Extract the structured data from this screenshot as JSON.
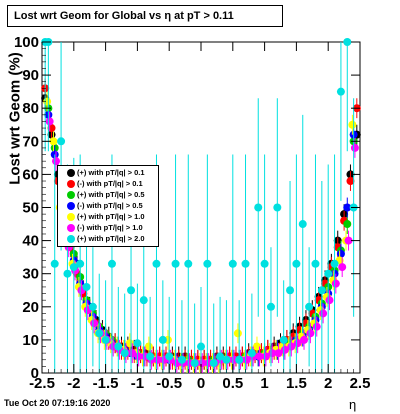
{
  "stamp": "Tue Oct 20 07:19:16 2020",
  "chart_data": {
    "type": "scatter",
    "title": "Lost wrt Geom for Global vs   η at pT > 0.11",
    "xlabel": "η",
    "ylabel": "Lost wrt Geom (%)",
    "xlim": [
      -2.5,
      2.5
    ],
    "ylim": [
      0,
      100
    ],
    "xticks": [
      "-2.5",
      "-2",
      "-1.5",
      "-1",
      "-0.5",
      "0",
      "0.5",
      "1",
      "1.5",
      "2",
      "2.5"
    ],
    "yticks": [
      "0",
      "10",
      "20",
      "30",
      "40",
      "50",
      "60",
      "70",
      "80",
      "90",
      "100"
    ],
    "legend_position": "left-middle",
    "series": [
      {
        "name": "(+) with pT/|q| > 0.1",
        "color": "#000000",
        "x": [
          -2.45,
          -2.35,
          -2.25,
          -2.15,
          -2.05,
          -1.95,
          -1.85,
          -1.75,
          -1.65,
          -1.55,
          -1.45,
          -1.35,
          -1.25,
          -1.15,
          -1.05,
          -0.95,
          -0.85,
          -0.75,
          -0.65,
          -0.55,
          -0.45,
          -0.35,
          -0.25,
          -0.15,
          -0.05,
          0.05,
          0.15,
          0.25,
          0.35,
          0.45,
          0.55,
          0.65,
          0.75,
          0.85,
          0.95,
          1.05,
          1.15,
          1.25,
          1.35,
          1.45,
          1.55,
          1.65,
          1.75,
          1.85,
          1.95,
          2.05,
          2.15,
          2.25,
          2.35,
          2.45
        ],
        "y": [
          83,
          72,
          60,
          48,
          40,
          33,
          25,
          20,
          16,
          13,
          11,
          9,
          8,
          8,
          7,
          6,
          6,
          5,
          5,
          5,
          5,
          5,
          5,
          4,
          4,
          4,
          4,
          5,
          5,
          5,
          5,
          5,
          6,
          6,
          6,
          7,
          8,
          9,
          10,
          12,
          14,
          16,
          19,
          23,
          28,
          33,
          40,
          48,
          60,
          72
        ]
      },
      {
        "name": "(-) with pT/|q| > 0.1",
        "color": "#ff0000",
        "x": [
          -2.45,
          -2.35,
          -2.25,
          -2.15,
          -2.05,
          -1.95,
          -1.85,
          -1.75,
          -1.65,
          -1.55,
          -1.45,
          -1.35,
          -1.25,
          -1.15,
          -1.05,
          -0.95,
          -0.85,
          -0.75,
          -0.65,
          -0.55,
          -0.45,
          -0.35,
          -0.25,
          -0.15,
          -0.05,
          0.05,
          0.15,
          0.25,
          0.35,
          0.45,
          0.55,
          0.65,
          0.75,
          0.85,
          0.95,
          1.05,
          1.15,
          1.25,
          1.35,
          1.45,
          1.55,
          1.65,
          1.75,
          1.85,
          1.95,
          2.05,
          2.15,
          2.25,
          2.35,
          2.45
        ],
        "y": [
          86,
          74,
          58,
          46,
          38,
          30,
          24,
          19,
          15,
          12,
          10,
          9,
          7,
          7,
          6,
          6,
          5,
          5,
          5,
          5,
          4,
          4,
          4,
          4,
          4,
          4,
          4,
          4,
          4,
          5,
          5,
          5,
          5,
          6,
          6,
          7,
          7,
          8,
          10,
          11,
          13,
          15,
          18,
          22,
          27,
          32,
          38,
          46,
          58,
          80
        ]
      },
      {
        "name": "(+) with pT/|q| > 0.5",
        "color": "#00cc00",
        "x": [
          -2.4,
          -2.3,
          -2.2,
          -2.1,
          -2.0,
          -1.9,
          -1.8,
          -1.7,
          -1.6,
          -1.5,
          -1.4,
          -1.3,
          -1.2,
          -1.1,
          -1.0,
          -0.9,
          -0.8,
          -0.7,
          -0.6,
          -0.5,
          -0.4,
          -0.3,
          -0.2,
          -0.1,
          0.0,
          0.1,
          0.2,
          0.3,
          0.4,
          0.5,
          0.6,
          0.7,
          0.8,
          0.9,
          1.0,
          1.1,
          1.2,
          1.3,
          1.4,
          1.5,
          1.6,
          1.7,
          1.8,
          1.9,
          2.0,
          2.1,
          2.2,
          2.3,
          2.4
        ],
        "y": [
          80,
          68,
          55,
          44,
          36,
          29,
          22,
          18,
          14,
          12,
          10,
          8,
          7,
          6,
          6,
          5,
          5,
          4,
          4,
          4,
          4,
          4,
          4,
          3,
          3,
          3,
          4,
          4,
          4,
          4,
          4,
          5,
          5,
          5,
          6,
          6,
          7,
          8,
          9,
          10,
          12,
          14,
          17,
          21,
          26,
          31,
          37,
          45,
          70
        ]
      },
      {
        "name": "(-) with pT/|q| > 0.5",
        "color": "#0000ff",
        "x": [
          -2.4,
          -2.3,
          -2.2,
          -2.1,
          -2.0,
          -1.9,
          -1.8,
          -1.7,
          -1.6,
          -1.5,
          -1.4,
          -1.3,
          -1.2,
          -1.1,
          -1.0,
          -0.9,
          -0.8,
          -0.7,
          -0.6,
          -0.5,
          -0.4,
          -0.3,
          -0.2,
          -0.1,
          0.0,
          0.1,
          0.2,
          0.3,
          0.4,
          0.5,
          0.6,
          0.7,
          0.8,
          0.9,
          1.0,
          1.1,
          1.2,
          1.3,
          1.4,
          1.5,
          1.6,
          1.7,
          1.8,
          1.9,
          2.0,
          2.1,
          2.2,
          2.3,
          2.4
        ],
        "y": [
          78,
          66,
          52,
          42,
          34,
          27,
          21,
          17,
          13,
          11,
          9,
          8,
          7,
          6,
          5,
          5,
          5,
          4,
          4,
          4,
          4,
          3,
          3,
          3,
          3,
          3,
          3,
          4,
          4,
          4,
          4,
          4,
          5,
          5,
          5,
          6,
          7,
          7,
          8,
          10,
          11,
          13,
          16,
          20,
          24,
          30,
          36,
          50,
          72
        ]
      },
      {
        "name": "(+) with pT/|q| > 1.0",
        "color": "#ffff00",
        "x": [
          -2.42,
          -2.32,
          -2.22,
          -2.12,
          -2.02,
          -1.92,
          -1.82,
          -1.72,
          -1.62,
          -1.52,
          -1.42,
          -1.32,
          -1.22,
          -1.12,
          -1.02,
          -0.92,
          -0.82,
          -0.72,
          -0.62,
          -0.52,
          -0.42,
          -0.32,
          -0.22,
          -0.12,
          -0.02,
          0.08,
          0.18,
          0.28,
          0.38,
          0.48,
          0.58,
          0.68,
          0.78,
          0.88,
          0.98,
          1.08,
          1.18,
          1.28,
          1.38,
          1.48,
          1.58,
          1.68,
          1.78,
          1.88,
          1.98,
          2.08,
          2.18,
          2.28,
          2.38
        ],
        "y": [
          82,
          70,
          50,
          40,
          33,
          26,
          20,
          16,
          12,
          10,
          9,
          8,
          7,
          9,
          6,
          5,
          8,
          4,
          4,
          10,
          4,
          3,
          3,
          3,
          3,
          3,
          3,
          3,
          4,
          4,
          12,
          4,
          5,
          8,
          5,
          6,
          7,
          8,
          8,
          9,
          11,
          13,
          15,
          19,
          23,
          28,
          34,
          40,
          75
        ]
      },
      {
        "name": "(-) with pT/|q| > 1.0",
        "color": "#ff00ff",
        "x": [
          -2.38,
          -2.28,
          -2.18,
          -2.08,
          -1.98,
          -1.88,
          -1.78,
          -1.68,
          -1.58,
          -1.48,
          -1.38,
          -1.28,
          -1.18,
          -1.08,
          -0.98,
          -0.88,
          -0.78,
          -0.68,
          -0.58,
          -0.48,
          -0.38,
          -0.28,
          -0.18,
          -0.08,
          0.02,
          0.12,
          0.22,
          0.32,
          0.42,
          0.52,
          0.62,
          0.72,
          0.82,
          0.92,
          1.02,
          1.12,
          1.22,
          1.32,
          1.42,
          1.52,
          1.62,
          1.72,
          1.82,
          1.92,
          2.02,
          2.12,
          2.22,
          2.32,
          2.42
        ],
        "y": [
          76,
          64,
          48,
          38,
          31,
          25,
          19,
          15,
          12,
          10,
          8,
          7,
          6,
          6,
          5,
          5,
          4,
          4,
          4,
          4,
          3,
          3,
          3,
          3,
          3,
          3,
          3,
          4,
          4,
          4,
          4,
          4,
          5,
          5,
          5,
          6,
          6,
          7,
          8,
          9,
          10,
          12,
          14,
          18,
          22,
          27,
          32,
          40,
          68
        ]
      },
      {
        "name": "(+) with pT/|q| > 2.0",
        "color": "#00e0e0",
        "x": [
          -2.45,
          -2.4,
          -2.3,
          -2.2,
          -2.1,
          -2.0,
          -1.9,
          -1.8,
          -1.7,
          -1.6,
          -1.5,
          -1.4,
          -1.3,
          -1.2,
          -1.1,
          -1.0,
          -0.9,
          -0.8,
          -0.7,
          -0.6,
          -0.5,
          -0.4,
          -0.3,
          -0.2,
          -0.1,
          0.0,
          0.1,
          0.2,
          0.3,
          0.4,
          0.5,
          0.6,
          0.7,
          0.8,
          0.9,
          1.0,
          1.1,
          1.2,
          1.3,
          1.4,
          1.5,
          1.6,
          1.7,
          1.8,
          1.9,
          2.0,
          2.1,
          2.2,
          2.3,
          2.4
        ],
        "y": [
          100,
          100,
          33,
          70,
          30,
          32,
          33,
          26,
          20,
          12,
          10,
          33,
          8,
          6,
          25,
          9,
          22,
          5,
          33,
          10,
          5,
          33,
          4,
          33,
          3,
          8,
          33,
          3,
          5,
          4,
          33,
          4,
          33,
          6,
          50,
          33,
          20,
          50,
          10,
          25,
          33,
          45,
          20,
          33,
          25,
          30,
          33,
          85,
          100,
          50
        ]
      }
    ]
  }
}
